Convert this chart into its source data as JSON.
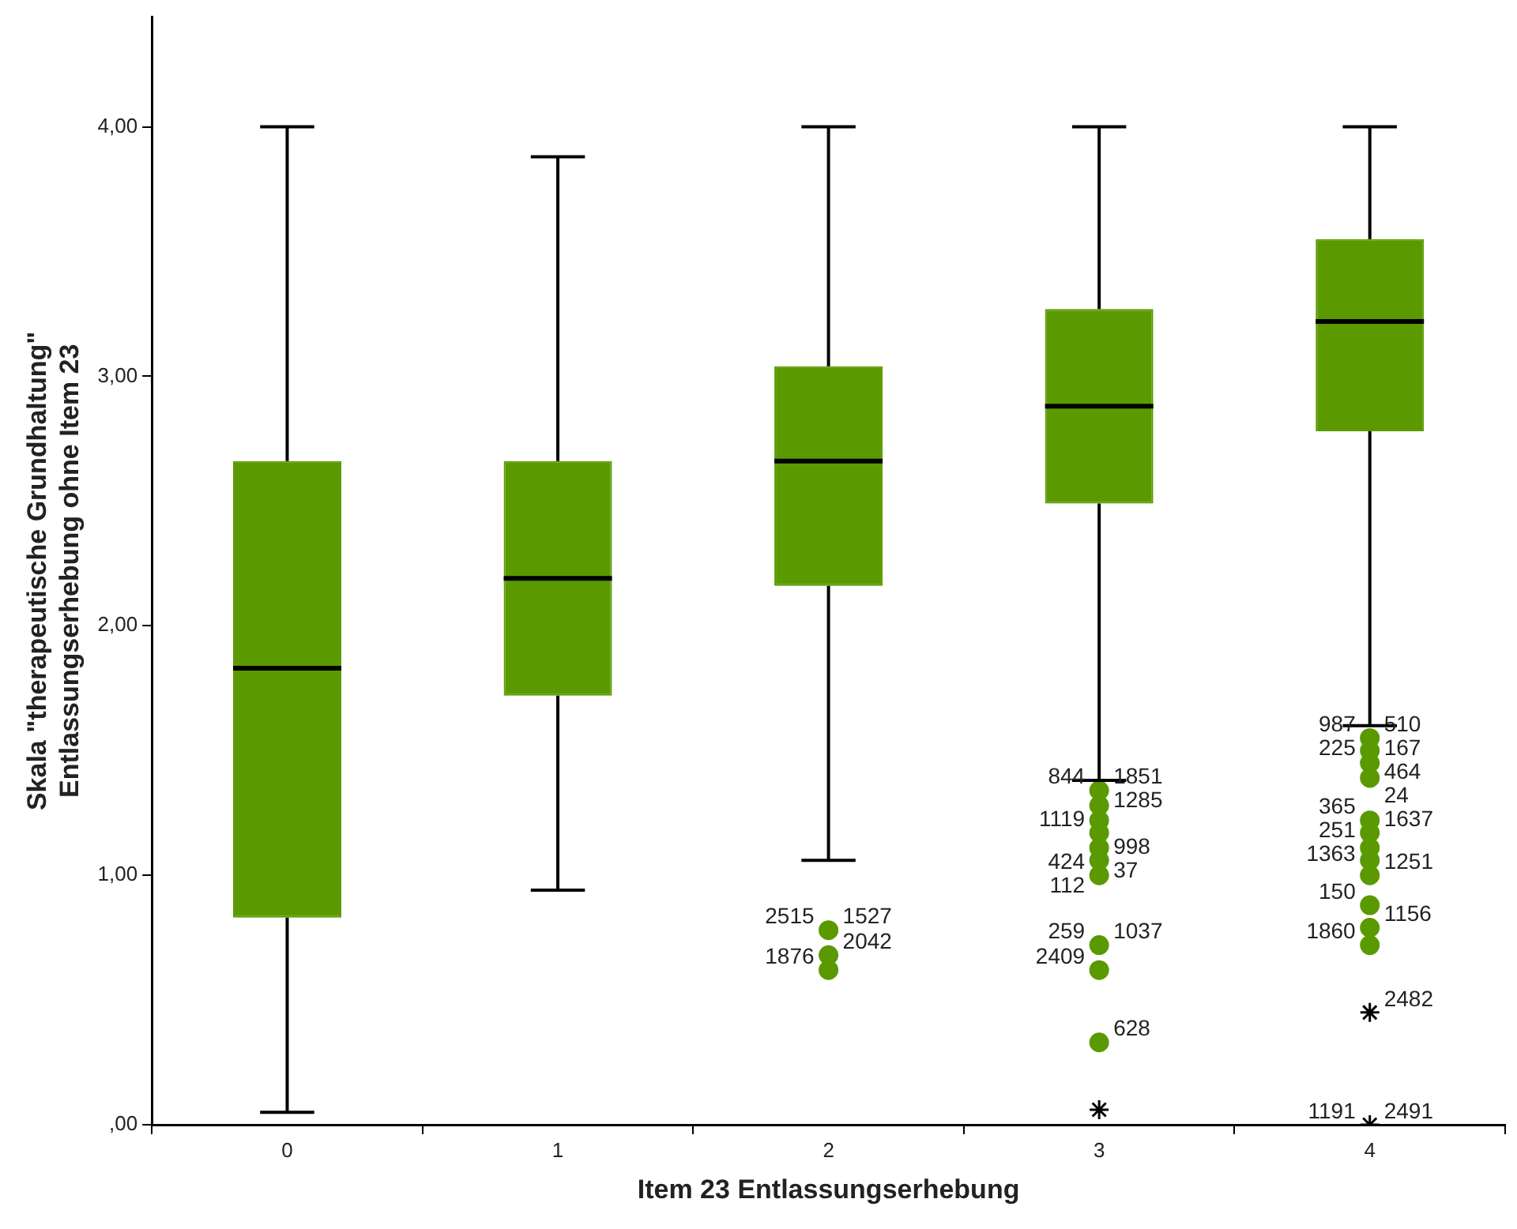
{
  "chart_data": {
    "type": "box",
    "xlabel": "Item 23 Entlassungserhebung",
    "ylabel": "Skala \"therapeutische Grundhaltung\" Entlassungserhebung ohne Item 23",
    "categories": [
      "0",
      "1",
      "2",
      "3",
      "4"
    ],
    "color": "#5a9a00",
    "boxes": [
      {
        "low": 0.05,
        "q1": 0.83,
        "median": 1.83,
        "q3": 2.66,
        "high": 4.0
      },
      {
        "low": 0.94,
        "q1": 1.72,
        "median": 2.19,
        "q3": 2.66,
        "high": 3.88
      },
      {
        "low": 1.06,
        "q1": 2.16,
        "median": 2.66,
        "q3": 3.04,
        "high": 4.0
      },
      {
        "low": 1.38,
        "q1": 2.49,
        "median": 2.88,
        "q3": 3.27,
        "high": 4.0
      },
      {
        "low": 1.6,
        "q1": 2.78,
        "median": 3.22,
        "q3": 3.55,
        "high": 4.0
      }
    ],
    "series": [
      {
        "type": "scatter",
        "x": [
          "2",
          "2",
          "2",
          "3",
          "3",
          "3",
          "3",
          "3",
          "3",
          "3",
          "3",
          "3",
          "3",
          "4",
          "4",
          "4",
          "4",
          "4",
          "4",
          "4",
          "4",
          "4",
          "4",
          "4",
          "4"
        ],
        "values": [
          0.78,
          0.68,
          0.62,
          1.34,
          1.28,
          1.22,
          1.17,
          1.11,
          1.06,
          1.0,
          0.72,
          0.62,
          0.33,
          1.55,
          1.5,
          1.45,
          1.39,
          1.22,
          1.17,
          1.11,
          1.06,
          1.0,
          0.88,
          0.79,
          0.72
        ],
        "marker": "circle",
        "color": "#5a9a00"
      },
      {
        "type": "scatter",
        "x": [
          "3",
          "4",
          "4"
        ],
        "values": [
          0.06,
          0.45,
          0.0
        ],
        "marker": "cross",
        "color": "#000000"
      }
    ],
    "ylim": [
      0,
      4.44
    ],
    "yticks": [
      {
        "value": 0,
        "label": ",00"
      },
      {
        "value": 1,
        "label": "1,00"
      },
      {
        "value": 2,
        "label": "2,00"
      },
      {
        "value": 3,
        "label": "3,00"
      },
      {
        "value": 4,
        "label": "4,00"
      }
    ],
    "grid": false,
    "legend": false,
    "annotations": [
      {
        "text": "1527",
        "x": "2",
        "y": 0.78
      },
      {
        "text": "2515",
        "x": "2",
        "y": 0.78
      },
      {
        "text": "2042",
        "x": "2",
        "y": 0.68
      },
      {
        "text": "1876",
        "x": "2",
        "y": 0.62
      },
      {
        "text": "1851",
        "x": "3",
        "y": 1.34
      },
      {
        "text": "844",
        "x": "3",
        "y": 1.34
      },
      {
        "text": "1285",
        "x": "3",
        "y": 1.28
      },
      {
        "text": "1119",
        "x": "3",
        "y": 1.17
      },
      {
        "text": "998",
        "x": "3",
        "y": 1.06
      },
      {
        "text": "424",
        "x": "3",
        "y": 1.0
      },
      {
        "text": "37",
        "x": "3",
        "y": 1.0
      },
      {
        "text": "112",
        "x": "3",
        "y": 1.0
      },
      {
        "text": "1037",
        "x": "3",
        "y": 0.72
      },
      {
        "text": "259",
        "x": "3",
        "y": 0.72
      },
      {
        "text": "628",
        "x": "3",
        "y": 0.33
      },
      {
        "text": "2409",
        "x": "3",
        "y": 0.62
      },
      {
        "text": "510",
        "x": "4",
        "y": 1.55
      },
      {
        "text": "987",
        "x": "4",
        "y": 1.55
      },
      {
        "text": "167",
        "x": "4",
        "y": 1.5
      },
      {
        "text": "225",
        "x": "4",
        "y": 1.5
      },
      {
        "text": "464",
        "x": "4",
        "y": 1.5
      },
      {
        "text": "365",
        "x": "4",
        "y": 1.22
      },
      {
        "text": "24",
        "x": "4",
        "y": 1.39
      },
      {
        "text": "251",
        "x": "4",
        "y": 1.22
      },
      {
        "text": "1637",
        "x": "4",
        "y": 1.22
      },
      {
        "text": "1363",
        "x": "4",
        "y": 1.11
      },
      {
        "text": "1251",
        "x": "4",
        "y": 1.0
      },
      {
        "text": "150",
        "x": "4",
        "y": 0.88
      },
      {
        "text": "1156",
        "x": "4",
        "y": 0.79
      },
      {
        "text": "1860",
        "x": "4",
        "y": 0.72
      },
      {
        "text": "2482",
        "x": "4",
        "y": 0.45
      },
      {
        "text": "1191",
        "x": "4",
        "y": 0.0
      },
      {
        "text": "2491",
        "x": "4",
        "y": 0.0
      }
    ]
  }
}
